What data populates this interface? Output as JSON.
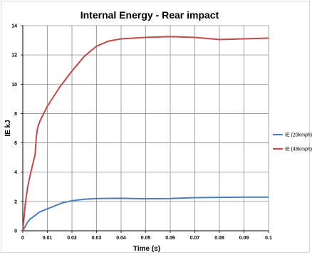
{
  "chart_data": {
    "type": "line",
    "title": "Internal Energy - Rear impact",
    "xlabel": "Time (s)",
    "ylabel": "IE kJ",
    "xlim": [
      0,
      0.1
    ],
    "ylim": [
      0,
      14
    ],
    "x_ticks": [
      "0",
      "0.01",
      "0.02",
      "0.03",
      "0.04",
      "0.05",
      "0.06",
      "0.07",
      "0.08",
      "0.09",
      "0.1"
    ],
    "y_ticks": [
      "0",
      "2",
      "4",
      "6",
      "8",
      "10",
      "12",
      "14"
    ],
    "grid": true,
    "legend_position": "right",
    "series": [
      {
        "name": "IE (20kmph)",
        "color": "#4a7ebb",
        "points": [
          [
            0,
            0
          ],
          [
            0.001,
            0.3
          ],
          [
            0.002,
            0.6
          ],
          [
            0.003,
            0.8
          ],
          [
            0.005,
            1.05
          ],
          [
            0.007,
            1.3
          ],
          [
            0.01,
            1.5
          ],
          [
            0.013,
            1.7
          ],
          [
            0.016,
            1.9
          ],
          [
            0.02,
            2.05
          ],
          [
            0.025,
            2.15
          ],
          [
            0.03,
            2.2
          ],
          [
            0.04,
            2.22
          ],
          [
            0.05,
            2.18
          ],
          [
            0.06,
            2.2
          ],
          [
            0.07,
            2.26
          ],
          [
            0.08,
            2.28
          ],
          [
            0.09,
            2.3
          ],
          [
            0.1,
            2.3
          ]
        ]
      },
      {
        "name": "IE (48kmph)",
        "color": "#be4b48",
        "points": [
          [
            0,
            0
          ],
          [
            0.001,
            1.8
          ],
          [
            0.002,
            3.0
          ],
          [
            0.003,
            3.8
          ],
          [
            0.004,
            4.5
          ],
          [
            0.005,
            5.2
          ],
          [
            0.0055,
            6.4
          ],
          [
            0.006,
            7.0
          ],
          [
            0.007,
            7.5
          ],
          [
            0.01,
            8.5
          ],
          [
            0.015,
            9.8
          ],
          [
            0.02,
            10.9
          ],
          [
            0.025,
            11.9
          ],
          [
            0.03,
            12.6
          ],
          [
            0.035,
            12.95
          ],
          [
            0.04,
            13.1
          ],
          [
            0.05,
            13.2
          ],
          [
            0.06,
            13.25
          ],
          [
            0.07,
            13.2
          ],
          [
            0.08,
            13.05
          ],
          [
            0.09,
            13.1
          ],
          [
            0.1,
            13.15
          ]
        ]
      }
    ]
  }
}
